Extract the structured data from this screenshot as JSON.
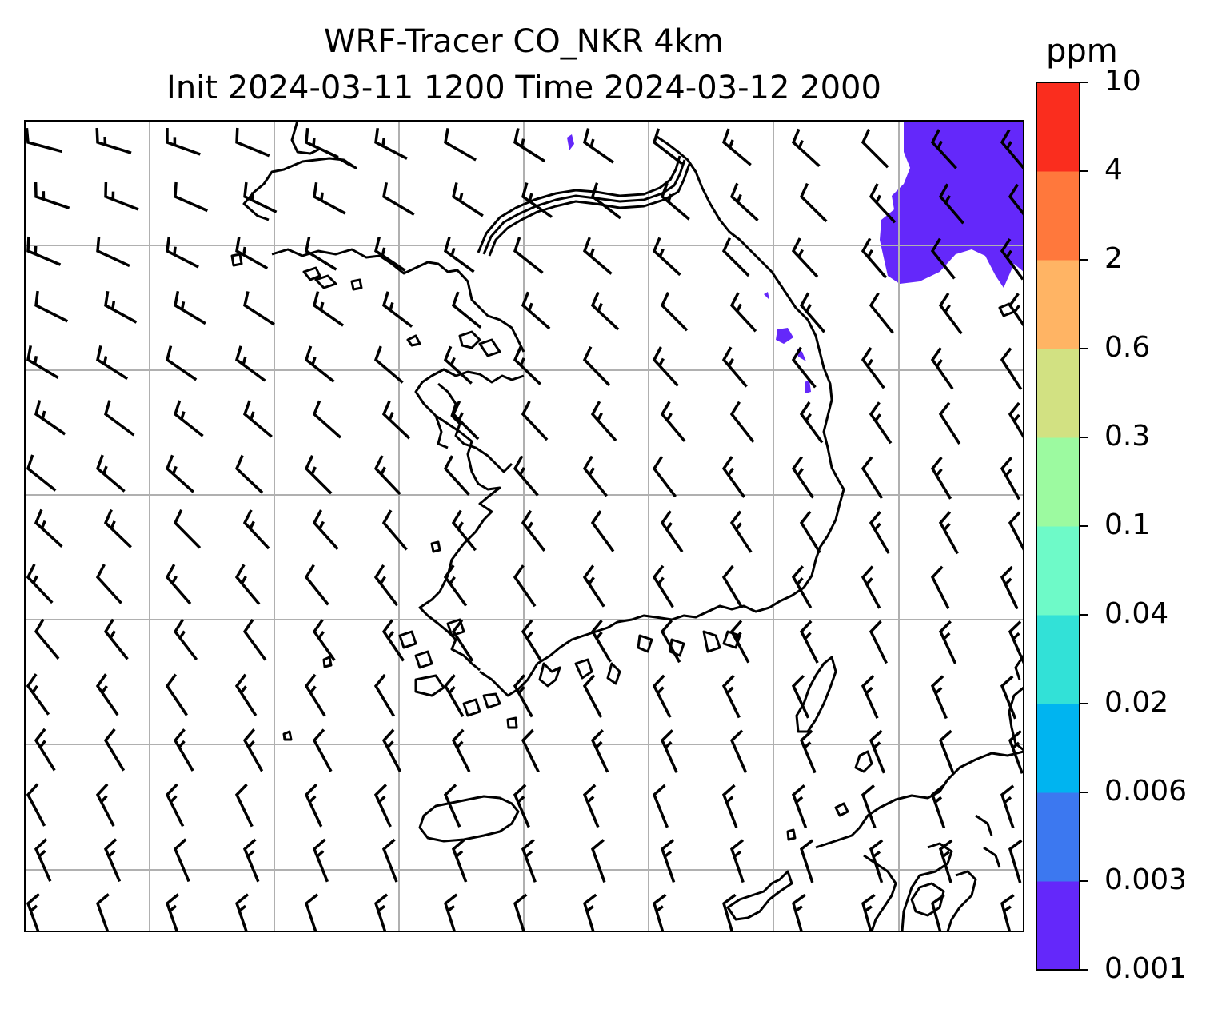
{
  "title_line1": "WRF-Tracer CO_NKR 4km",
  "title_line2": "Init 2024-03-11 1200 Time 2024-03-12 2000",
  "colorbar": {
    "unit": "ppm",
    "levels": [
      "0.001",
      "0.003",
      "0.006",
      "0.02",
      "0.04",
      "0.1",
      "0.3",
      "0.6",
      "2",
      "4",
      "10"
    ],
    "colors": [
      "#6428fa",
      "#3c78f0",
      "#00b4f0",
      "#32e1d7",
      "#6efac8",
      "#9cfaa0",
      "#d2e182",
      "#ffb464",
      "#ff783c",
      "#fa2d1e"
    ]
  },
  "map": {
    "plume_color": "#6428fa",
    "coastline_color": "#000000",
    "grid_color": "#b0b0b0",
    "barb_color": "#000000",
    "gridlines": true,
    "barbs": true
  }
}
